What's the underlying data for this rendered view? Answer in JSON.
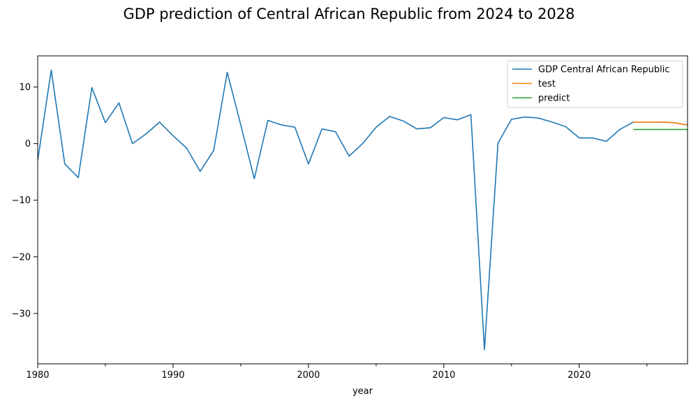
{
  "chart_data": {
    "type": "line",
    "title": "GDP prediction of Central African Republic from 2024 to 2028",
    "xlabel": "year",
    "ylabel": "",
    "xlim": [
      1980,
      2028
    ],
    "ylim": [
      -38.9,
      15.5
    ],
    "x_ticks": [
      1980,
      1990,
      2000,
      2010,
      2020
    ],
    "x_minor_ticks": [
      1985,
      1995,
      2005,
      2015,
      2025
    ],
    "y_ticks": [
      10,
      0,
      -10,
      -20,
      -30
    ],
    "legend_position": "top-right",
    "grid": false,
    "series": [
      {
        "name": "GDP Central African Republic",
        "color": "#1f77b4",
        "x": [
          1980,
          1981,
          1982,
          1983,
          1984,
          1985,
          1986,
          1987,
          1988,
          1989,
          1990,
          1991,
          1992,
          1993,
          1994,
          1995,
          1996,
          1997,
          1998,
          1999,
          2000,
          2001,
          2002,
          2003,
          2004,
          2005,
          2006,
          2007,
          2008,
          2009,
          2010,
          2011,
          2012,
          2013,
          2014,
          2015,
          2016,
          2017,
          2018,
          2019,
          2020,
          2021,
          2022,
          2023,
          2024,
          2025,
          2026,
          2027,
          2028
        ],
        "y": [
          -3.0,
          13.0,
          -3.6,
          -6.0,
          9.9,
          3.7,
          7.2,
          0.0,
          1.7,
          3.8,
          1.4,
          -0.8,
          -4.9,
          -1.2,
          12.6,
          3.3,
          -6.2,
          4.1,
          3.3,
          2.9,
          -3.6,
          2.6,
          2.1,
          -2.2,
          0.0,
          2.9,
          4.8,
          4.0,
          2.6,
          2.8,
          4.6,
          4.2,
          5.1,
          -36.4,
          0.1,
          4.3,
          4.7,
          4.5,
          3.8,
          3.0,
          1.0,
          1.0,
          0.4,
          2.5,
          3.8,
          3.8,
          3.8,
          3.7,
          3.3
        ]
      },
      {
        "name": "test",
        "color": "#ff7f0e",
        "x": [
          2024,
          2025,
          2026,
          2027,
          2028
        ],
        "y": [
          3.8,
          3.8,
          3.8,
          3.7,
          3.3
        ]
      },
      {
        "name": "predict",
        "color": "#2ca02c",
        "x": [
          2024,
          2025,
          2026,
          2027,
          2028
        ],
        "y": [
          2.5,
          2.5,
          2.5,
          2.5,
          2.5
        ]
      }
    ]
  }
}
